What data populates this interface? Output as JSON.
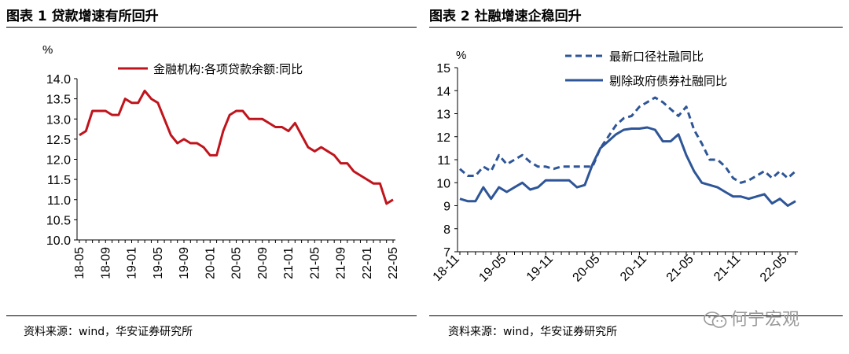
{
  "figures": [
    {
      "title": "图表 1  贷款增速有所回升",
      "source": "资料来源：wind，华安证券研究所"
    },
    {
      "title": "图表 2  社融增速企稳回升",
      "source": "资料来源：wind，华安证券研究所"
    }
  ],
  "watermark": "何宁宏观",
  "colors": {
    "chart1_line": "#c0141c",
    "chart2_line": "#2e5597"
  },
  "chart_data": [
    {
      "type": "line",
      "ylabel": "%",
      "ylim": [
        10.0,
        14.0
      ],
      "yticks": [
        "14.0",
        "13.5",
        "13.0",
        "12.5",
        "12.0",
        "11.5",
        "11.0",
        "10.5",
        "10.0"
      ],
      "xtick_labels": [
        "18-05",
        "18-09",
        "19-01",
        "19-05",
        "19-09",
        "20-01",
        "20-05",
        "20-09",
        "21-01",
        "21-05",
        "21-09",
        "22-01",
        "22-05"
      ],
      "legend_position": "top",
      "series": [
        {
          "name": "金融机构:各项贷款余额:同比",
          "values": [
            12.6,
            12.7,
            13.2,
            13.2,
            13.2,
            13.1,
            13.1,
            13.5,
            13.4,
            13.4,
            13.7,
            13.5,
            13.4,
            13.0,
            12.6,
            12.4,
            12.5,
            12.4,
            12.4,
            12.3,
            12.1,
            12.1,
            12.7,
            13.1,
            13.2,
            13.2,
            13.0,
            13.0,
            13.0,
            12.9,
            12.8,
            12.8,
            12.7,
            12.9,
            12.6,
            12.3,
            12.2,
            12.3,
            12.2,
            12.1,
            11.9,
            11.9,
            11.7,
            11.6,
            11.5,
            11.4,
            11.4,
            10.9,
            11.0
          ]
        }
      ]
    },
    {
      "type": "line",
      "ylabel": "%",
      "ylim": [
        7,
        15
      ],
      "yticks": [
        "15",
        "14",
        "13",
        "12",
        "11",
        "10",
        "9",
        "8",
        "7"
      ],
      "xtick_labels": [
        "18-11",
        "19-05",
        "19-11",
        "20-05",
        "20-11",
        "21-05",
        "21-11",
        "22-05"
      ],
      "legend_position": "top",
      "series": [
        {
          "name": "最新口径社融同比",
          "style": "dashed",
          "values": [
            10.6,
            10.3,
            10.3,
            10.7,
            10.5,
            11.2,
            10.8,
            11.0,
            11.2,
            10.9,
            10.7,
            10.7,
            10.6,
            10.7,
            10.7,
            10.7,
            10.7,
            10.7,
            11.5,
            12.0,
            12.5,
            12.8,
            12.9,
            13.3,
            13.5,
            13.7,
            13.5,
            13.2,
            12.9,
            13.3,
            12.3,
            11.7,
            11.0,
            11.0,
            10.7,
            10.2,
            10.0,
            10.1,
            10.3,
            10.5,
            10.2,
            10.5,
            10.2,
            10.5
          ]
        },
        {
          "name": "剔除政府债券社融同比",
          "style": "solid",
          "values": [
            9.3,
            9.2,
            9.2,
            9.8,
            9.3,
            9.8,
            9.6,
            9.8,
            10.0,
            9.7,
            9.8,
            10.1,
            10.1,
            10.1,
            10.1,
            9.8,
            9.9,
            10.8,
            11.5,
            11.8,
            12.1,
            12.3,
            12.35,
            12.35,
            12.4,
            12.3,
            11.8,
            11.8,
            12.1,
            11.2,
            10.5,
            10.0,
            9.9,
            9.8,
            9.6,
            9.4,
            9.4,
            9.3,
            9.4,
            9.5,
            9.1,
            9.3,
            9.0,
            9.2
          ]
        }
      ]
    }
  ]
}
